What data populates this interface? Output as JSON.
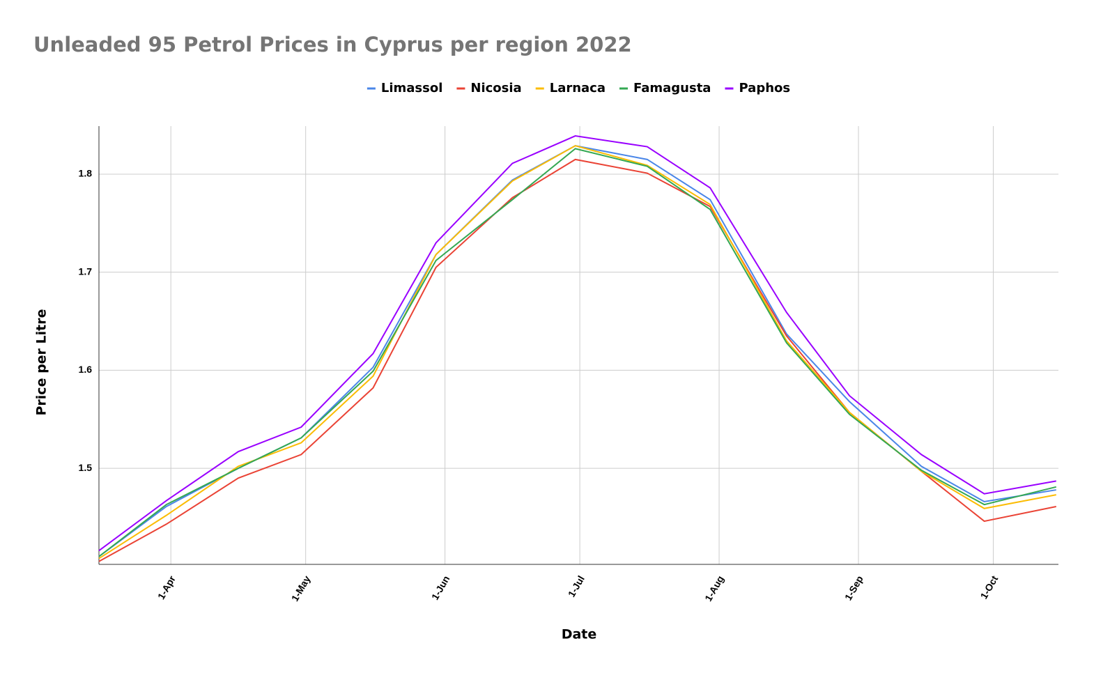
{
  "chart_data": {
    "type": "line",
    "title": "Unleaded 95 Petrol Prices in Cyprus per region 2022",
    "x_label": "Date",
    "y_label": "Price per Litre",
    "x": [
      75,
      90,
      106,
      120,
      136,
      150,
      167,
      181,
      197,
      211,
      228,
      242,
      258,
      272,
      288
    ],
    "series": [
      {
        "name": "Limassol",
        "color": "#4a86e8",
        "values": [
          1.41,
          1.461,
          1.5,
          1.531,
          1.603,
          1.718,
          1.794,
          1.829,
          1.815,
          1.774,
          1.637,
          1.568,
          1.502,
          1.466,
          1.478
        ]
      },
      {
        "name": "Nicosia",
        "color": "#ea4335",
        "values": [
          1.405,
          1.443,
          1.49,
          1.514,
          1.582,
          1.705,
          1.776,
          1.815,
          1.801,
          1.767,
          1.635,
          1.557,
          1.497,
          1.446,
          1.461
        ]
      },
      {
        "name": "Larnaca",
        "color": "#fbbc04",
        "values": [
          1.408,
          1.452,
          1.502,
          1.526,
          1.594,
          1.718,
          1.793,
          1.829,
          1.809,
          1.769,
          1.63,
          1.557,
          1.497,
          1.459,
          1.473
        ]
      },
      {
        "name": "Famagusta",
        "color": "#34a853",
        "values": [
          1.41,
          1.463,
          1.5,
          1.531,
          1.599,
          1.712,
          1.774,
          1.826,
          1.808,
          1.764,
          1.628,
          1.555,
          1.498,
          1.463,
          1.481
        ]
      },
      {
        "name": "Paphos",
        "color": "#9900ff",
        "values": [
          1.416,
          1.467,
          1.517,
          1.542,
          1.617,
          1.73,
          1.811,
          1.839,
          1.828,
          1.786,
          1.659,
          1.574,
          1.514,
          1.474,
          1.487
        ]
      }
    ],
    "xlim": [
      75,
      288.5
    ],
    "xticks": [
      {
        "value": 91,
        "label": "1-Apr"
      },
      {
        "value": 121,
        "label": "1-May"
      },
      {
        "value": 152,
        "label": "1-Jun"
      },
      {
        "value": 182,
        "label": "1-Jul"
      },
      {
        "value": 213,
        "label": "1-Aug"
      },
      {
        "value": 244,
        "label": "1-Sep"
      },
      {
        "value": 274,
        "label": "1-Oct"
      }
    ],
    "ylim": [
      1.402,
      1.849
    ],
    "yticks": [
      1.5,
      1.6,
      1.7,
      1.8
    ],
    "grid": true,
    "legend": "top"
  }
}
